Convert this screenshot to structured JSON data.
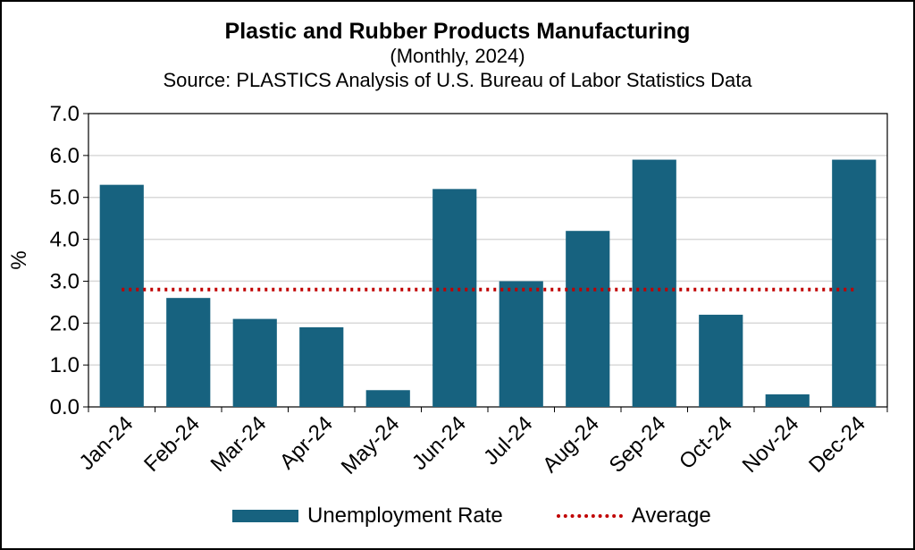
{
  "chart_data": {
    "type": "bar",
    "title": "Plastic and Rubber Products Manufacturing",
    "subtitle": "(Monthly, 2024)",
    "source": "Source: PLASTICS Analysis of U.S. Bureau of Labor Statistics Data",
    "ylabel": "%",
    "xlabel": "",
    "ylim": [
      0,
      7
    ],
    "yticks": [
      "0.0",
      "1.0",
      "2.0",
      "3.0",
      "4.0",
      "5.0",
      "6.0",
      "7.0"
    ],
    "grid": true,
    "legend_position": "bottom",
    "categories": [
      "Jan-24",
      "Feb-24",
      "Mar-24",
      "Apr-24",
      "May-24",
      "Jun-24",
      "Jul-24",
      "Aug-24",
      "Sep-24",
      "Oct-24",
      "Nov-24",
      "Dec-24"
    ],
    "series": [
      {
        "name": "Unemployment Rate",
        "type": "bar",
        "color": "#17627f",
        "values": [
          5.3,
          2.6,
          2.1,
          1.9,
          0.4,
          5.2,
          3.0,
          4.2,
          5.9,
          2.2,
          0.3,
          5.9
        ]
      },
      {
        "name": "Average",
        "type": "line",
        "style": "dotted",
        "color": "#c00000",
        "values": [
          2.8,
          2.8,
          2.8,
          2.8,
          2.8,
          2.8,
          2.8,
          2.8,
          2.8,
          2.8,
          2.8,
          2.8
        ]
      }
    ]
  }
}
